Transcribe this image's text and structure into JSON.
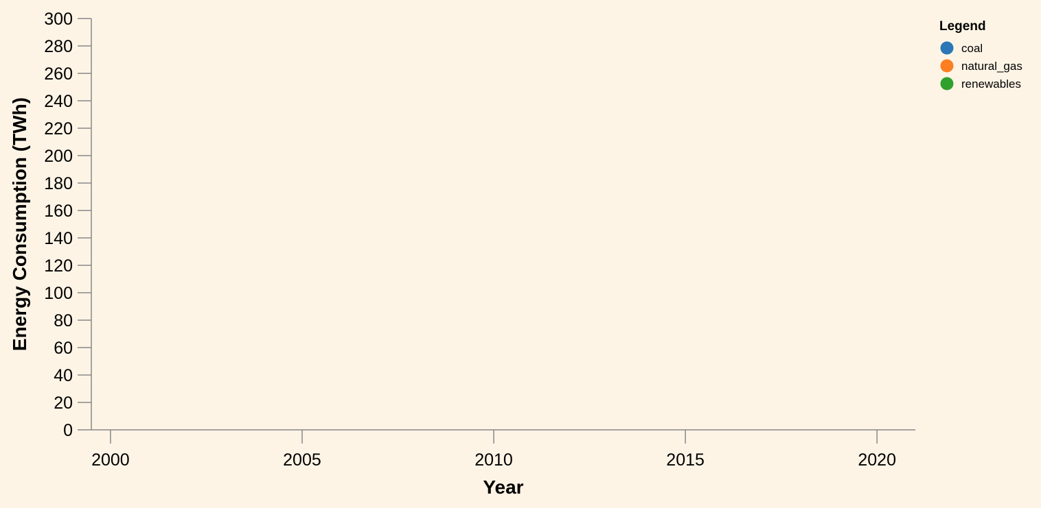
{
  "chart_data": {
    "type": "line",
    "title": "",
    "xlabel": "Year",
    "ylabel": "Energy Consumption (TWh)",
    "xlim": [
      1999.5,
      2021
    ],
    "ylim": [
      0,
      300
    ],
    "x_ticks": [
      "2000",
      "2005",
      "2010",
      "2015",
      "2020"
    ],
    "y_ticks": [
      "0",
      "20",
      "40",
      "60",
      "80",
      "100",
      "120",
      "140",
      "160",
      "180",
      "200",
      "220",
      "240",
      "260",
      "280",
      "300"
    ],
    "grid": false,
    "legend": {
      "title": "Legend",
      "placement": "top-right"
    },
    "series": [
      {
        "name": "coal",
        "color": "#2a76b6",
        "values": []
      },
      {
        "name": "natural_gas",
        "color": "#fb7f21",
        "values": []
      },
      {
        "name": "renewables",
        "color": "#30a02d",
        "values": []
      }
    ]
  },
  "colors": {
    "background": "#fdf4e6",
    "axis": "#888888",
    "text": "#000000"
  }
}
